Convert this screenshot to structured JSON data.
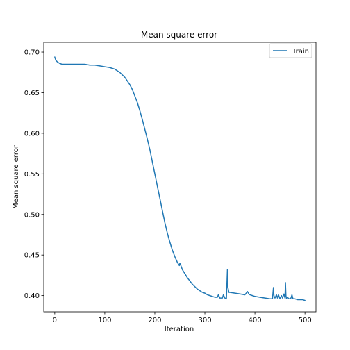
{
  "chart_data": {
    "type": "line",
    "title": "Mean square error",
    "xlabel": "Iteration",
    "ylabel": "Mean square error",
    "xlim": [
      -22,
      522
    ],
    "ylim": [
      0.38,
      0.712
    ],
    "xticks": [
      0,
      100,
      200,
      300,
      400,
      500
    ],
    "xtick_labels": [
      "0",
      "100",
      "200",
      "300",
      "400",
      "500"
    ],
    "yticks": [
      0.4,
      0.45,
      0.5,
      0.55,
      0.6,
      0.65,
      0.7
    ],
    "ytick_labels": [
      "0.40",
      "0.45",
      "0.50",
      "0.55",
      "0.60",
      "0.65",
      "0.70"
    ],
    "grid": false,
    "legend_position": "top-right",
    "series": [
      {
        "name": "Train",
        "color": "#1f77b4",
        "x": [
          0,
          2,
          5,
          10,
          15,
          20,
          30,
          40,
          50,
          60,
          70,
          80,
          90,
          100,
          110,
          120,
          130,
          140,
          150,
          155,
          160,
          165,
          170,
          175,
          180,
          185,
          190,
          195,
          200,
          205,
          210,
          215,
          220,
          225,
          230,
          235,
          240,
          245,
          249,
          250,
          252,
          255,
          260,
          265,
          270,
          275,
          280,
          285,
          290,
          295,
          300,
          305,
          310,
          315,
          320,
          325,
          327,
          330,
          335,
          337,
          340,
          343,
          345,
          346,
          348,
          350,
          360,
          370,
          380,
          385,
          388,
          390,
          395,
          400,
          410,
          420,
          430,
          435,
          437,
          438,
          440,
          443,
          445,
          447,
          450,
          453,
          455,
          458,
          460,
          461,
          462,
          463,
          465,
          468,
          470,
          472,
          474,
          476,
          478,
          480,
          485,
          490,
          495,
          500
        ],
        "values": [
          0.694,
          0.69,
          0.688,
          0.686,
          0.685,
          0.685,
          0.685,
          0.685,
          0.685,
          0.685,
          0.684,
          0.684,
          0.683,
          0.682,
          0.681,
          0.679,
          0.675,
          0.669,
          0.66,
          0.654,
          0.646,
          0.638,
          0.628,
          0.617,
          0.605,
          0.593,
          0.58,
          0.565,
          0.55,
          0.535,
          0.52,
          0.505,
          0.49,
          0.477,
          0.466,
          0.456,
          0.448,
          0.441,
          0.437,
          0.44,
          0.437,
          0.432,
          0.427,
          0.422,
          0.418,
          0.414,
          0.411,
          0.408,
          0.406,
          0.404,
          0.403,
          0.401,
          0.4,
          0.399,
          0.398,
          0.398,
          0.401,
          0.397,
          0.397,
          0.401,
          0.397,
          0.396,
          0.432,
          0.41,
          0.404,
          0.404,
          0.403,
          0.402,
          0.401,
          0.405,
          0.402,
          0.401,
          0.4,
          0.399,
          0.398,
          0.397,
          0.396,
          0.396,
          0.41,
          0.4,
          0.397,
          0.401,
          0.397,
          0.401,
          0.396,
          0.4,
          0.397,
          0.402,
          0.397,
          0.416,
          0.4,
          0.396,
          0.398,
          0.396,
          0.396,
          0.397,
          0.401,
          0.396,
          0.396,
          0.396,
          0.395,
          0.395,
          0.395,
          0.394
        ]
      }
    ]
  }
}
